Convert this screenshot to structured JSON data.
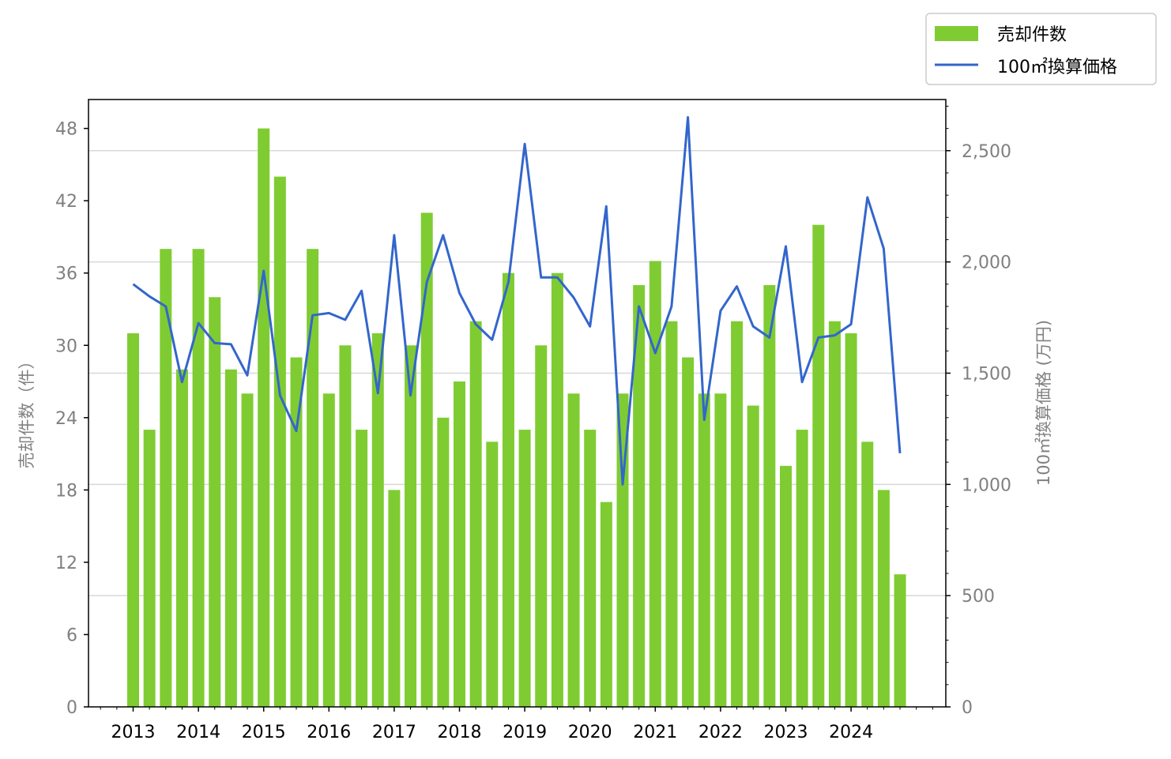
{
  "chart_data": {
    "type": "bar",
    "x": [
      "2013Q1",
      "2013Q2",
      "2013Q3",
      "2013Q4",
      "2014Q1",
      "2014Q2",
      "2014Q3",
      "2014Q4",
      "2015Q1",
      "2015Q2",
      "2015Q3",
      "2015Q4",
      "2016Q1",
      "2016Q2",
      "2016Q3",
      "2016Q4",
      "2017Q1",
      "2017Q2",
      "2017Q3",
      "2017Q4",
      "2018Q1",
      "2018Q2",
      "2018Q3",
      "2018Q4",
      "2019Q1",
      "2019Q2",
      "2019Q3",
      "2019Q4",
      "2020Q1",
      "2020Q2",
      "2020Q3",
      "2020Q4",
      "2021Q1",
      "2021Q2",
      "2021Q3",
      "2021Q4",
      "2022Q1",
      "2022Q2",
      "2022Q3",
      "2022Q4",
      "2023Q1",
      "2023Q2",
      "2023Q3",
      "2023Q4",
      "2024Q1",
      "2024Q2",
      "2024Q3",
      "2024Q4"
    ],
    "xticks": [
      "2013",
      "2014",
      "2015",
      "2016",
      "2017",
      "2018",
      "2019",
      "2020",
      "2021",
      "2022",
      "2023",
      "2024"
    ],
    "series": [
      {
        "name": "売却件数",
        "kind": "bar",
        "axis": "left",
        "color": "#7fcc32",
        "values": [
          31,
          23,
          38,
          28,
          38,
          34,
          28,
          26,
          48,
          44,
          29,
          38,
          26,
          30,
          23,
          31,
          18,
          30,
          41,
          24,
          27,
          32,
          22,
          36,
          23,
          30,
          36,
          26,
          23,
          17,
          26,
          35,
          37,
          32,
          29,
          26,
          26,
          32,
          25,
          35,
          20,
          23,
          40,
          32,
          31,
          22,
          18,
          11
        ]
      },
      {
        "name": "100㎡換算価格",
        "kind": "line",
        "axis": "right",
        "color": "#3366cc",
        "values": [
          1900,
          1845,
          1800,
          1460,
          1725,
          1635,
          1630,
          1490,
          1960,
          1400,
          1240,
          1760,
          1770,
          1740,
          1870,
          1410,
          2120,
          1400,
          1910,
          2120,
          1860,
          1720,
          1650,
          1910,
          2530,
          1930,
          1930,
          1840,
          1710,
          2250,
          1000,
          1800,
          1590,
          1800,
          2650,
          1290,
          1780,
          1890,
          1710,
          1660,
          2070,
          1460,
          1660,
          1670,
          1720,
          2290,
          2060,
          1140
        ]
      }
    ],
    "left_axis": {
      "label": "売却件数（件）",
      "ticks": [
        "0",
        "6",
        "12",
        "18",
        "24",
        "30",
        "36",
        "42",
        "48"
      ],
      "ylim": [
        0,
        50.4
      ]
    },
    "right_axis": {
      "label": "100㎡換算価格 (万円)",
      "ticks": [
        "0",
        "500",
        "1,000",
        "1,500",
        "2,000",
        "2,500"
      ],
      "ylim": [
        0,
        2730
      ]
    },
    "grid": "horizontal (right-axis major ticks)",
    "legend_position": "top-right, outside plot"
  }
}
